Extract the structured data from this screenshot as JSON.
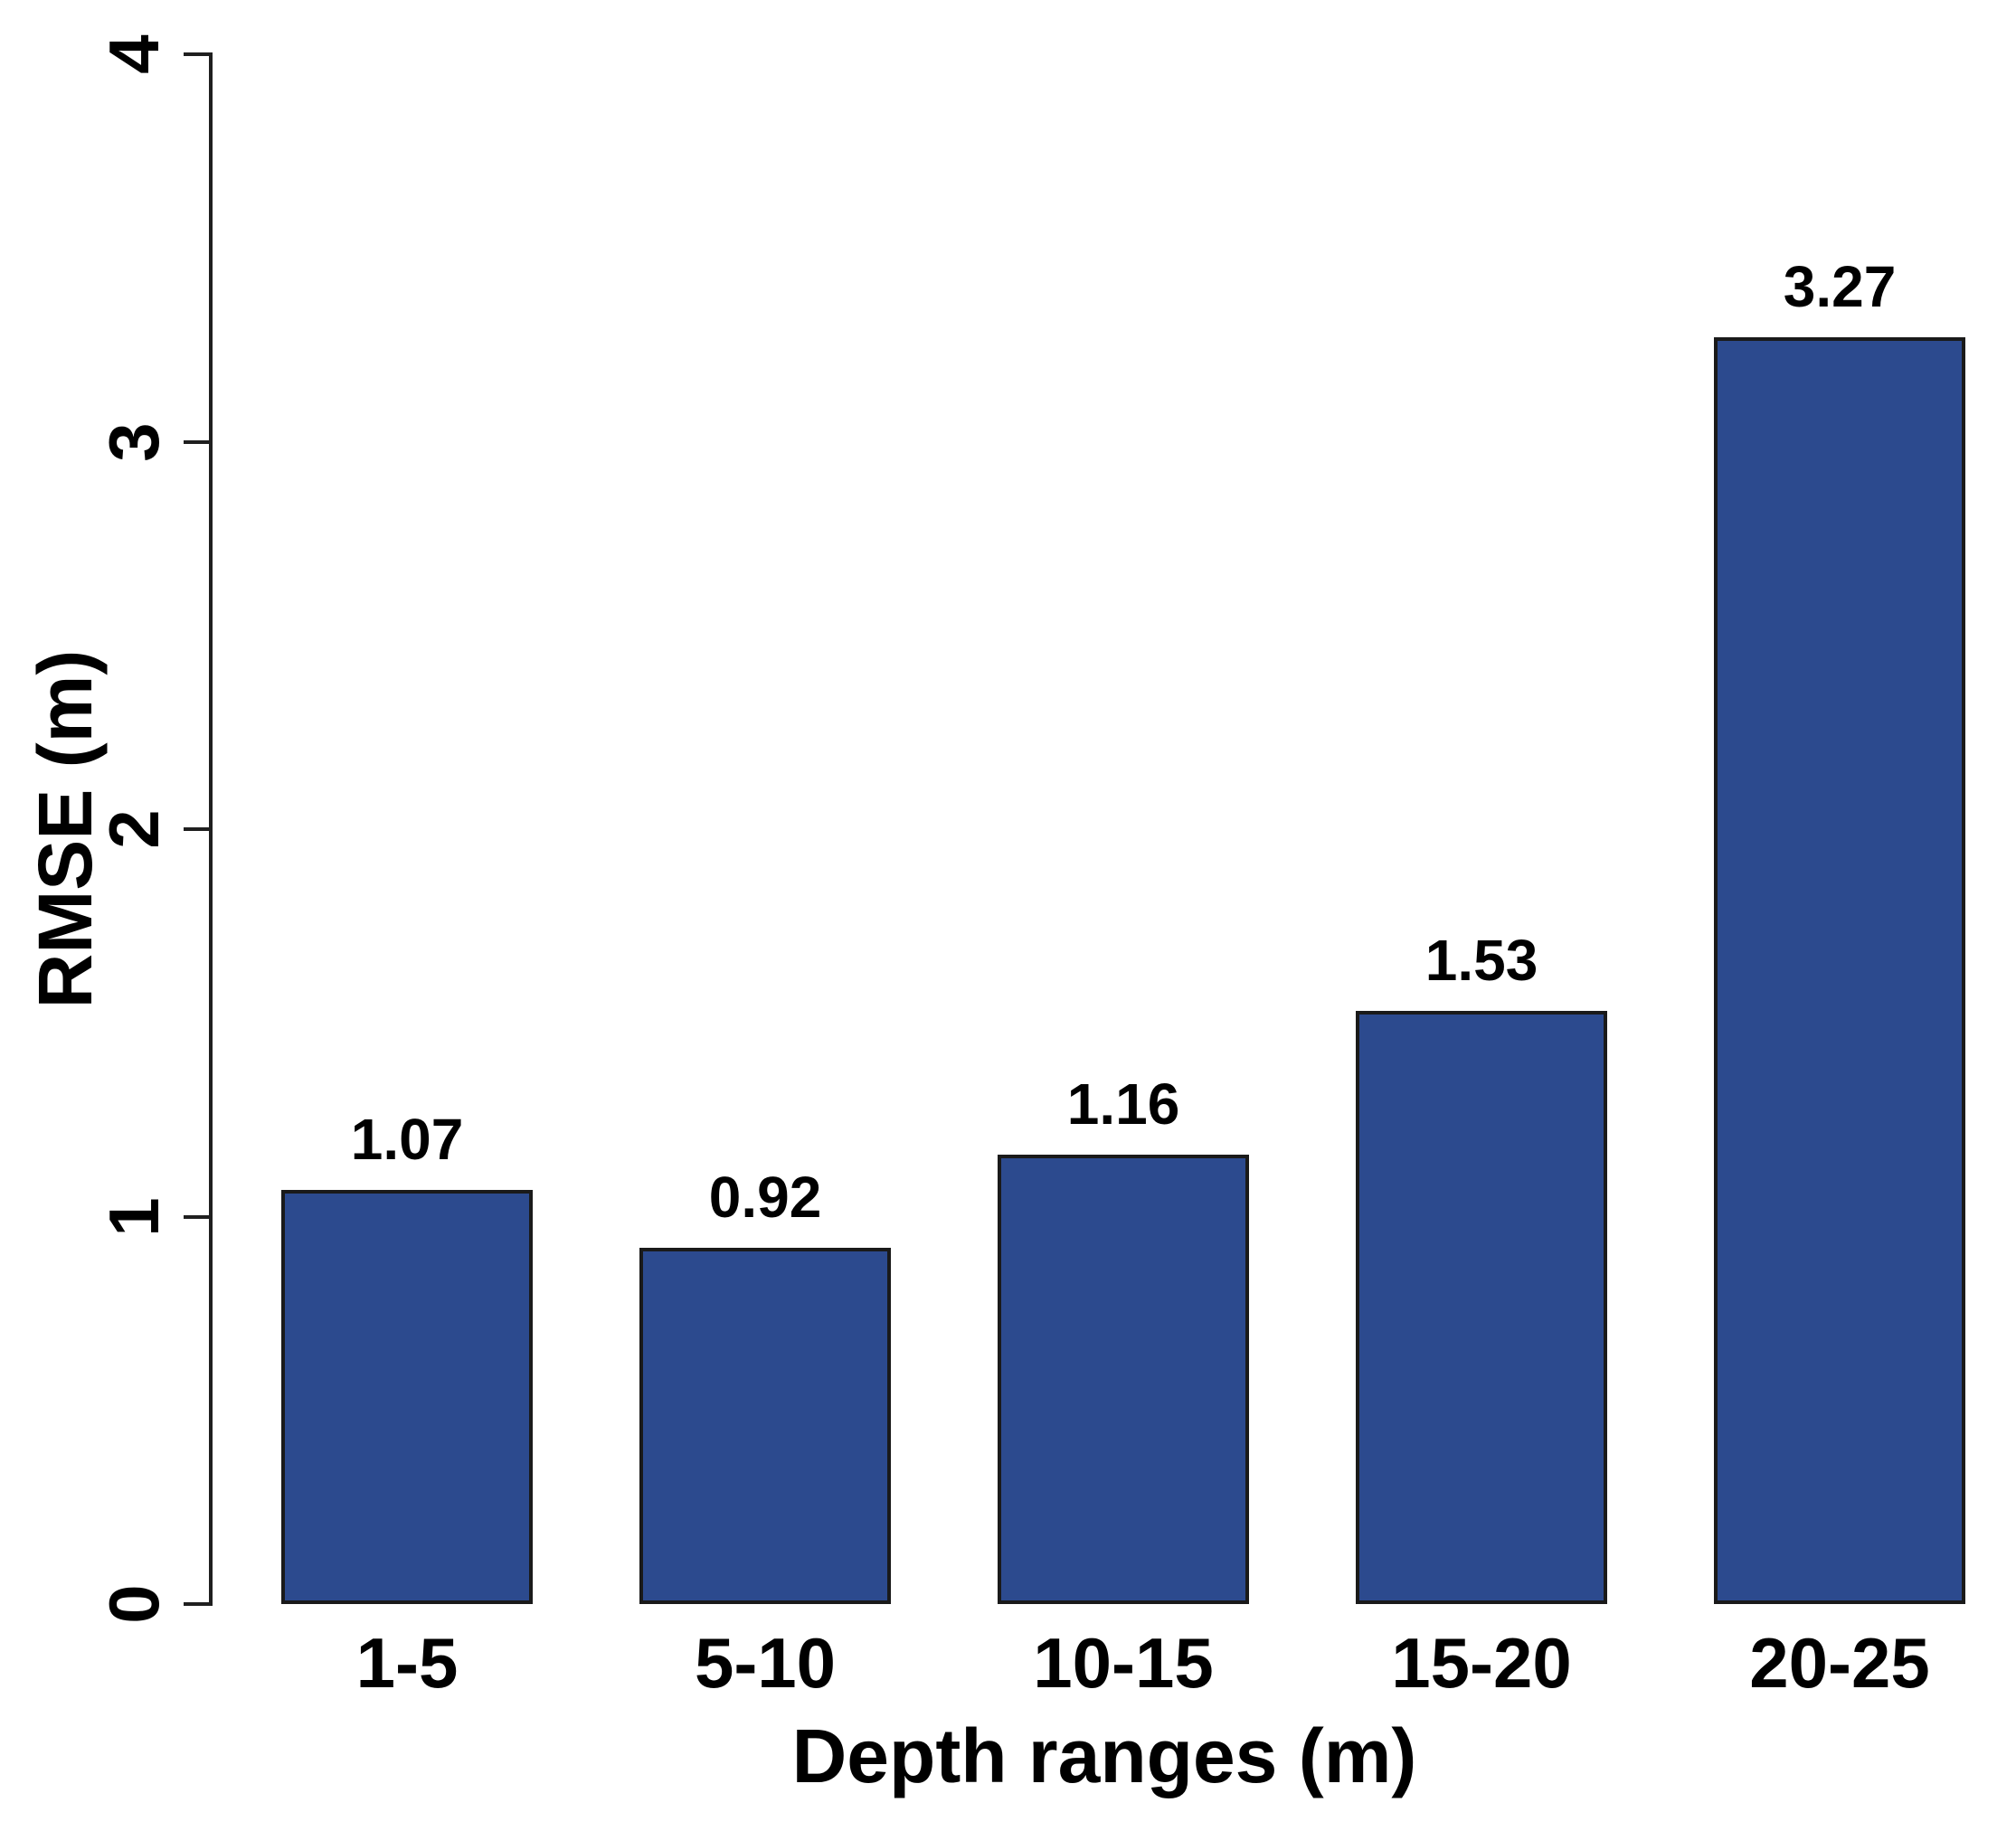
{
  "chart_data": {
    "type": "bar",
    "title": "",
    "xlabel": "Depth ranges (m)",
    "ylabel": "RMSE (m)",
    "categories": [
      "1-5",
      "5-10",
      "10-15",
      "15-20",
      "20-25"
    ],
    "values": [
      1.07,
      0.92,
      1.16,
      1.53,
      3.27
    ],
    "value_labels": [
      "1.07",
      "0.92",
      "1.16",
      "1.53",
      "3.27"
    ],
    "ylim": [
      0,
      4
    ],
    "yticks": [
      0,
      1,
      2,
      3,
      4
    ],
    "grid": false,
    "legend": "none",
    "bar_fill_color": "#2c4a8e",
    "bar_border_color": "#1a1a1a",
    "axis_color": "#1f1f1f",
    "text_color": "#000000",
    "background_color": "#ffffff"
  }
}
